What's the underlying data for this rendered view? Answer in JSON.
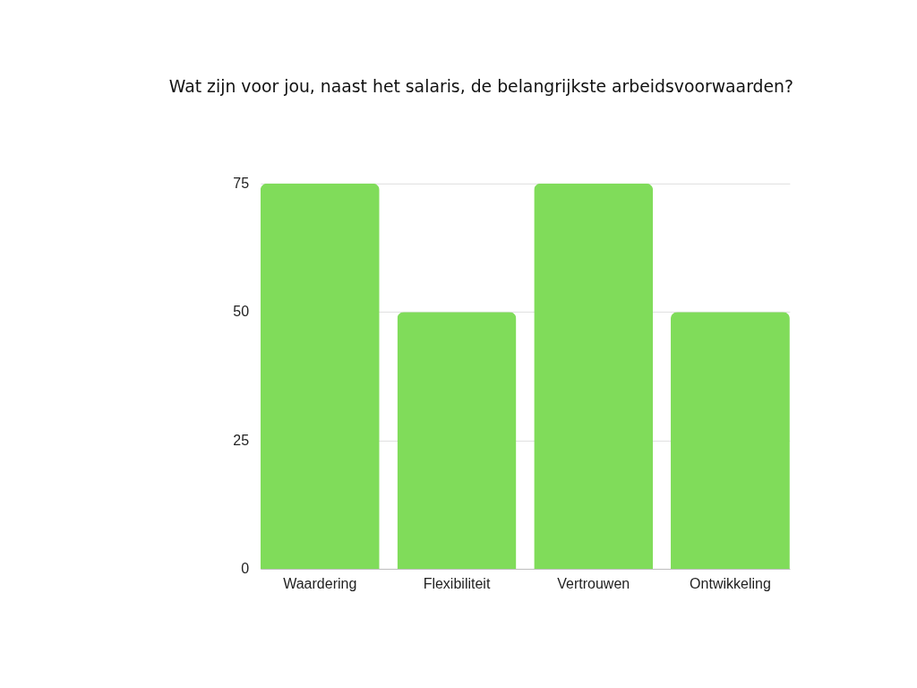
{
  "chart_data": {
    "type": "bar",
    "title": "Wat zijn voor jou, naast het salaris, de belangrijkste arbeidsvoorwaarden?",
    "categories": [
      "Waardering",
      "Flexibiliteit",
      "Vertrouwen",
      "Ontwikkeling"
    ],
    "values": [
      75,
      50,
      75,
      50
    ],
    "color": "#80dc5a",
    "ylim": [
      0,
      75
    ],
    "yticks": [
      0,
      25,
      50,
      75
    ],
    "grid": "y"
  }
}
